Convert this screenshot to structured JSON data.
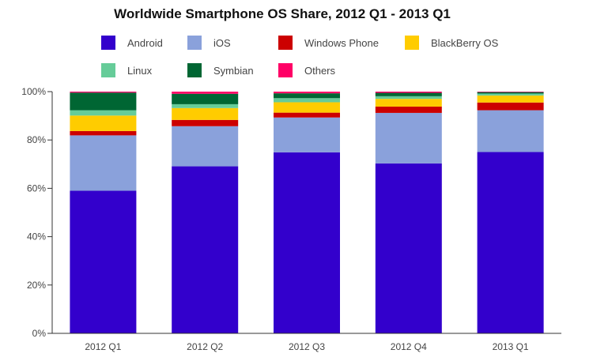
{
  "chart_data": {
    "type": "bar",
    "stacked": true,
    "title": "Worldwide Smartphone OS Share, 2012 Q1 - 2013 Q1",
    "xlabel": "",
    "ylabel": "",
    "ylim": [
      0,
      100
    ],
    "y_ticks": [
      "0%",
      "20%",
      "40%",
      "60%",
      "80%",
      "100%"
    ],
    "y_tick_values": [
      0,
      20,
      40,
      60,
      80,
      100
    ],
    "grid": false,
    "legend_position": "top",
    "categories": [
      "2012 Q1",
      "2012 Q2",
      "2012 Q3",
      "2012 Q4",
      "2013 Q1"
    ],
    "series": [
      {
        "name": "Android",
        "color": "#3300cc",
        "values": [
          59.0,
          69.1,
          74.9,
          70.3,
          75.0
        ]
      },
      {
        "name": "iOS",
        "color": "#8aa1db",
        "values": [
          22.9,
          16.6,
          14.4,
          20.9,
          17.3
        ]
      },
      {
        "name": "Windows Phone",
        "color": "#cc0000",
        "values": [
          1.8,
          2.6,
          2.0,
          2.6,
          3.2
        ]
      },
      {
        "name": "BlackBerry OS",
        "color": "#ffcc00",
        "values": [
          6.4,
          4.9,
          4.3,
          3.2,
          2.9
        ]
      },
      {
        "name": "Linux",
        "color": "#66cc99",
        "values": [
          2.2,
          1.6,
          1.7,
          1.1,
          0.8
        ]
      },
      {
        "name": "Symbian",
        "color": "#006633",
        "values": [
          7.3,
          4.3,
          2.0,
          1.4,
          0.6
        ]
      },
      {
        "name": "Others",
        "color": "#ff0066",
        "values": [
          0.4,
          0.9,
          0.7,
          0.5,
          0.2
        ]
      }
    ]
  }
}
